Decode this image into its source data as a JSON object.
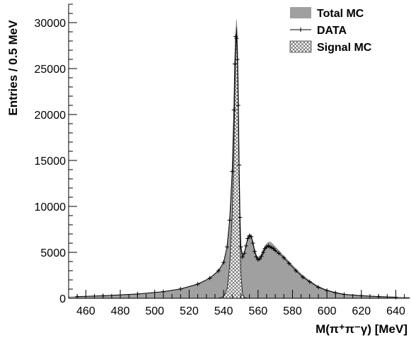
{
  "chart_data": {
    "type": "area",
    "xlabel": "M(π⁺π⁻γ)  [MeV]",
    "ylabel": "Entries / 0.5 MeV",
    "xlim": [
      450,
      648
    ],
    "ylim": [
      0,
      32000
    ],
    "xticks": [
      460,
      480,
      500,
      520,
      540,
      560,
      580,
      600,
      620,
      640
    ],
    "yticks": [
      0,
      5000,
      10000,
      15000,
      20000,
      25000,
      30000
    ],
    "legend_position": "top-right",
    "legend": [
      {
        "label": "Total MC",
        "style": "filled",
        "color": "#a0a0a0"
      },
      {
        "label": "DATA",
        "style": "line-cross",
        "color": "#000000"
      },
      {
        "label": "Signal MC",
        "style": "hatched",
        "color": "#555555"
      }
    ],
    "series": [
      {
        "name": "Total MC",
        "x": [
          450,
          470,
          490,
          505,
          515,
          525,
          532,
          537,
          540,
          542,
          543.5,
          545,
          546,
          546.5,
          547,
          547.5,
          548,
          548.5,
          549,
          549.5,
          550,
          551,
          552,
          553,
          554,
          555,
          556,
          557,
          558,
          559,
          560,
          561,
          562,
          563,
          564,
          565,
          566,
          567,
          568,
          569,
          570,
          572,
          575,
          578,
          582,
          586,
          590,
          595,
          600,
          605,
          610,
          620,
          630,
          640,
          648
        ],
        "y": [
          150,
          250,
          450,
          700,
          1000,
          1500,
          2100,
          2900,
          3700,
          5200,
          7800,
          13000,
          19000,
          24000,
          28500,
          30300,
          28500,
          24000,
          16000,
          9500,
          5800,
          4800,
          5000,
          5800,
          6600,
          7000,
          6900,
          6200,
          5400,
          4700,
          4400,
          4500,
          4800,
          5300,
          5700,
          5900,
          6100,
          6100,
          6000,
          5800,
          5600,
          5200,
          4600,
          4000,
          3200,
          2500,
          1900,
          1300,
          900,
          650,
          450,
          300,
          200,
          130,
          100
        ]
      },
      {
        "name": "DATA",
        "x": [
          455,
          470,
          490,
          505,
          515,
          525,
          532,
          537,
          540,
          542,
          543.5,
          545,
          546,
          546.5,
          547,
          547.5,
          548,
          548.5,
          549,
          549.5,
          550,
          551,
          552,
          553,
          554,
          555,
          556,
          557,
          558,
          559,
          560,
          561,
          562,
          563,
          564,
          565,
          566,
          567,
          568,
          569,
          570,
          572,
          575,
          578,
          582,
          586,
          590,
          595,
          600,
          605,
          610,
          620,
          630,
          640
        ],
        "y": [
          180,
          280,
          470,
          720,
          1020,
          1550,
          2200,
          3000,
          3900,
          5600,
          8500,
          13800,
          20500,
          25500,
          28500,
          28300,
          26000,
          21000,
          14500,
          8800,
          5600,
          4500,
          4900,
          5700,
          6500,
          6800,
          6700,
          6000,
          5100,
          4500,
          4200,
          4300,
          4600,
          5000,
          5400,
          5600,
          5700,
          5600,
          5500,
          5400,
          5200,
          4900,
          4400,
          3800,
          3000,
          2300,
          1800,
          1200,
          850,
          600,
          420,
          280,
          180,
          120
        ]
      },
      {
        "name": "Signal MC",
        "x": [
          537,
          540,
          542,
          543.5,
          545,
          546,
          546.5,
          547,
          547.5,
          548,
          548.5,
          549,
          549.5,
          550,
          551,
          552,
          554
        ],
        "y": [
          0,
          200,
          1000,
          3500,
          9000,
          16000,
          22000,
          27500,
          29500,
          27000,
          22000,
          14000,
          7000,
          2800,
          500,
          80,
          0
        ]
      }
    ]
  }
}
